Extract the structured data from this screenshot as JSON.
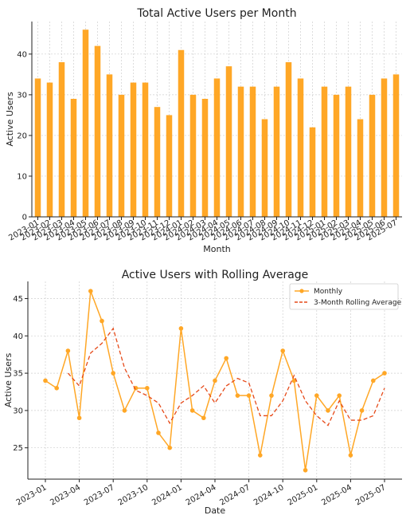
{
  "chart_data": [
    {
      "type": "bar",
      "title": "Total Active Users per Month",
      "xlabel": "Month",
      "ylabel": "Active Users",
      "ylim": [
        0,
        48
      ],
      "yticks": [
        0,
        10,
        20,
        30,
        40
      ],
      "grid": true,
      "color": "#FFA726",
      "categories": [
        "2023-01",
        "2023-02",
        "2023-03",
        "2023-04",
        "2023-05",
        "2023-06",
        "2023-07",
        "2023-08",
        "2023-09",
        "2023-10",
        "2023-11",
        "2023-12",
        "2024-01",
        "2024-02",
        "2024-03",
        "2024-04",
        "2024-05",
        "2024-06",
        "2024-07",
        "2024-08",
        "2024-09",
        "2024-10",
        "2024-11",
        "2024-12",
        "2025-01",
        "2025-02",
        "2025-03",
        "2025-04",
        "2025-05",
        "2025-06",
        "2025-07"
      ],
      "values": [
        34,
        33,
        38,
        29,
        46,
        42,
        35,
        30,
        33,
        33,
        27,
        25,
        41,
        30,
        29,
        34,
        37,
        32,
        32,
        24,
        32,
        38,
        34,
        22,
        32,
        30,
        32,
        24,
        30,
        34,
        35
      ]
    },
    {
      "type": "line",
      "title": "Active Users with Rolling Average",
      "xlabel": "Date",
      "ylabel": "Active Users",
      "ylim": [
        20.8,
        47.3
      ],
      "yticks": [
        25,
        30,
        35,
        40,
        45
      ],
      "xticks": [
        "2023-01",
        "2023-04",
        "2023-07",
        "2023-10",
        "2024-01",
        "2024-04",
        "2024-07",
        "2024-10",
        "2025-01",
        "2025-04",
        "2025-07"
      ],
      "grid": true,
      "legend_position": "top-right",
      "series": [
        {
          "name": "Monthly",
          "color": "#FFA726",
          "marker": "circle",
          "values": [
            34,
            33,
            38,
            29,
            46,
            42,
            35,
            30,
            33,
            33,
            27,
            25,
            41,
            30,
            29,
            34,
            37,
            32,
            32,
            24,
            32,
            38,
            34,
            22,
            32,
            30,
            32,
            24,
            30,
            34,
            35
          ]
        },
        {
          "name": "3-Month Rolling Average",
          "color": "#E64A19",
          "style": "dashed",
          "values": [
            null,
            null,
            35,
            33.3,
            37.7,
            39,
            41,
            35.7,
            32.7,
            32,
            31,
            28.3,
            31,
            32,
            33.3,
            31,
            33.3,
            34.3,
            33.7,
            29.3,
            29.3,
            31.3,
            34.7,
            31.3,
            29.3,
            28,
            31.3,
            28.7,
            28.7,
            29.3,
            33
          ]
        }
      ]
    }
  ]
}
